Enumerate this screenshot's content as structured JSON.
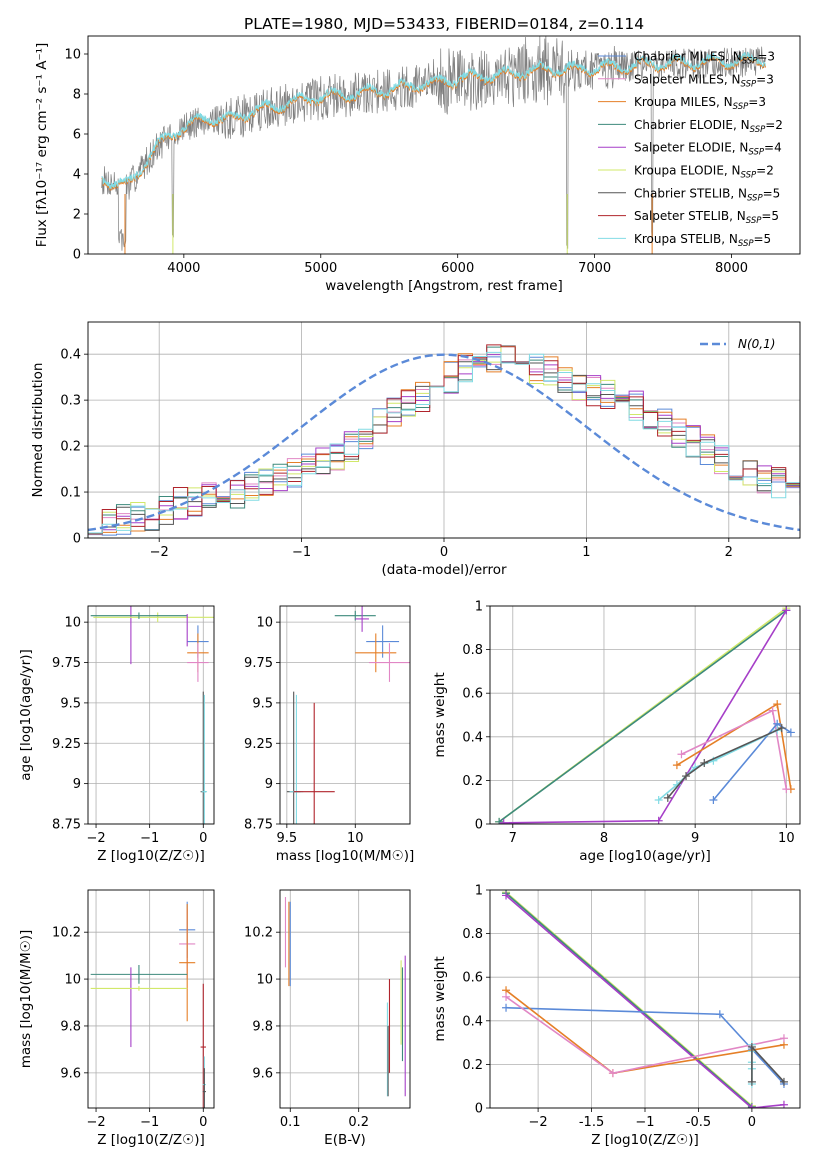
{
  "colors": {
    "Chabrier MILES": "#5b8ad8",
    "Salpeter MILES": "#e187c5",
    "Kroupa MILES": "#e57f27",
    "Chabrier ELODIE": "#3d8a7c",
    "Salpeter ELODIE": "#a63fc8",
    "Kroupa ELODIE": "#d1e86a",
    "Chabrier STELIB": "#555555",
    "Salpeter STELIB": "#b0242c",
    "Kroupa STELIB": "#82dbe4",
    "data": "#7f7f7f",
    "gaussian": "#5b8ad8",
    "grid": "#b0b0b0"
  },
  "chart_data": [
    {
      "id": "spectrum",
      "type": "line",
      "title": "PLATE=1980, MJD=53433, FIBERID=0184, z=0.114",
      "xlabel": "wavelength [Angstrom, rest frame]",
      "ylabel": "Flux [fλ10⁻¹⁷ erg cm⁻² s⁻¹ A⁻¹]",
      "xlim": [
        3300,
        8500
      ],
      "ylim": [
        0,
        10.9
      ],
      "xticks": [
        4000,
        5000,
        6000,
        7000,
        8000
      ],
      "yticks": [
        0,
        2,
        4,
        6,
        8,
        10
      ],
      "grid": false,
      "legend_position": "top-right",
      "legend": [
        "Chabrier MILES, NSSP=3",
        "Salpeter MILES, NSSP=3",
        "Kroupa MILES, NSSP=3",
        "Chabrier ELODIE, NSSP=2",
        "Salpeter ELODIE, NSSP=4",
        "Kroupa ELODIE, NSSP=2",
        "Chabrier STELIB, NSSP=5",
        "Salpeter STELIB, NSSP=5",
        "Kroupa STELIB, NSSP=5"
      ],
      "continuum_x": [
        3400,
        3500,
        3600,
        3700,
        3800,
        3900,
        4000,
        4100,
        4200,
        4300,
        4500,
        4700,
        4900,
        5100,
        5300,
        5500,
        5700,
        5900,
        6100,
        6300,
        6500,
        6700,
        6900,
        7100,
        7300,
        7500,
        7700,
        7900,
        8100,
        8250
      ],
      "continuum_y": [
        3.7,
        3.5,
        3.4,
        4.4,
        5.3,
        5.9,
        6.3,
        6.6,
        6.8,
        6.6,
        7.1,
        7.4,
        7.7,
        7.9,
        8.0,
        8.2,
        8.4,
        8.6,
        8.8,
        8.9,
        9.1,
        9.2,
        9.2,
        9.3,
        9.4,
        9.5,
        9.5,
        9.6,
        9.6,
        9.7
      ]
    },
    {
      "id": "residuals",
      "type": "histogram",
      "xlabel": "(data-model)/error",
      "ylabel": "Normed distribution",
      "xlim": [
        -2.5,
        2.5
      ],
      "ylim": [
        0,
        0.47
      ],
      "xticks": [
        -2,
        -1,
        0,
        1,
        2
      ],
      "yticks": [
        0.0,
        0.1,
        0.2,
        0.3,
        0.4
      ],
      "grid": true,
      "legend_position": "top-right",
      "legend": [
        "N(0,1)"
      ],
      "bin_width": 0.1,
      "bin_start": -2.5,
      "base_values": [
        0.025,
        0.035,
        0.04,
        0.045,
        0.05,
        0.06,
        0.075,
        0.08,
        0.09,
        0.1,
        0.1,
        0.11,
        0.12,
        0.13,
        0.14,
        0.15,
        0.17,
        0.18,
        0.2,
        0.22,
        0.25,
        0.27,
        0.29,
        0.31,
        0.32,
        0.35,
        0.37,
        0.38,
        0.39,
        0.4,
        0.38,
        0.37,
        0.36,
        0.35,
        0.33,
        0.32,
        0.31,
        0.3,
        0.29,
        0.27,
        0.25,
        0.23,
        0.21,
        0.19,
        0.17,
        0.16,
        0.14,
        0.13,
        0.12,
        0.11,
        0.1
      ]
    },
    {
      "id": "age_vs_Z",
      "type": "errorbar",
      "xlabel": "Z [log10(Z/Z☉)]",
      "ylabel": "age [log10(age/yr)]",
      "xlim": [
        -2.15,
        0.2
      ],
      "ylim": [
        8.75,
        10.1
      ],
      "xticks": [
        -2,
        -1,
        0
      ],
      "yticks": [
        8.75,
        9.0,
        9.25,
        9.5,
        9.75,
        10.0
      ],
      "grid": true,
      "points": [
        {
          "model": "Chabrier MILES",
          "x": -0.1,
          "y": 9.88,
          "xerr": 0.2,
          "yerr": 0.1
        },
        {
          "model": "Kroupa MILES",
          "x": -0.1,
          "y": 9.81,
          "xerr": 0.2,
          "yerr": 0.12
        },
        {
          "model": "Salpeter MILES",
          "x": -0.1,
          "y": 9.75,
          "xerr": 0.2,
          "yerr": 0.12
        },
        {
          "model": "Salpeter ELODIE",
          "x": -1.35,
          "y": 9.93,
          "xerr": 0.0,
          "yerr": 0.19
        },
        {
          "model": "Kroupa ELODIE",
          "x": -0.85,
          "y": 10.03,
          "xerr": 1.2,
          "yerr": 0.03
        },
        {
          "model": "Chabrier ELODIE",
          "x": -1.2,
          "y": 10.04,
          "xerr": 0.9,
          "yerr": 0.02
        },
        {
          "model": "Salpeter ELODIE",
          "x": -0.3,
          "y": 9.95,
          "xerr": 0.0,
          "yerr": 0.1
        },
        {
          "model": "Chabrier STELIB",
          "x": 0.0,
          "y": 8.95,
          "xerr": 0.05,
          "yerr": 0.62
        },
        {
          "model": "Kroupa STELIB",
          "x": 0.02,
          "y": 8.95,
          "xerr": 0.05,
          "yerr": 0.6
        }
      ]
    },
    {
      "id": "age_vs_mass",
      "type": "errorbar",
      "xlabel": "mass [log10(M/M☉)]",
      "ylabel": "",
      "xlim": [
        9.45,
        10.4
      ],
      "ylim": [
        8.75,
        10.1
      ],
      "xticks": [
        9.5,
        10.0
      ],
      "yticks": [
        8.75,
        9.0,
        9.25,
        9.5,
        9.75,
        10.0
      ],
      "grid": true,
      "points": [
        {
          "model": "Chabrier MILES",
          "x": 10.2,
          "y": 9.88,
          "xerr": 0.12,
          "yerr": 0.1
        },
        {
          "model": "Kroupa MILES",
          "x": 10.15,
          "y": 9.81,
          "xerr": 0.15,
          "yerr": 0.12
        },
        {
          "model": "Salpeter MILES",
          "x": 10.25,
          "y": 9.75,
          "xerr": 0.15,
          "yerr": 0.12
        },
        {
          "model": "Chabrier ELODIE",
          "x": 10.0,
          "y": 10.04,
          "xerr": 0.15,
          "yerr": 0.03
        },
        {
          "model": "Salpeter ELODIE",
          "x": 10.05,
          "y": 10.02,
          "xerr": 0.05,
          "yerr": 0.08
        },
        {
          "model": "Chabrier STELIB",
          "x": 9.55,
          "y": 8.95,
          "xerr": 0.05,
          "yerr": 0.62
        },
        {
          "model": "Kroupa STELIB",
          "x": 9.57,
          "y": 8.95,
          "xerr": 0.05,
          "yerr": 0.6
        },
        {
          "model": "Salpeter STELIB",
          "x": 9.7,
          "y": 8.95,
          "xerr": 0.15,
          "yerr": 0.55
        }
      ]
    },
    {
      "id": "weight_vs_age",
      "type": "line",
      "xlabel": "age [log10(age/yr)]",
      "ylabel": "mass weight",
      "xlim": [
        6.75,
        10.15
      ],
      "ylim": [
        0,
        1.0
      ],
      "xticks": [
        7,
        8,
        9,
        10
      ],
      "yticks": [
        0.0,
        0.2,
        0.4,
        0.6,
        0.8,
        1.0
      ],
      "grid": true,
      "series": [
        {
          "model": "Kroupa ELODIE",
          "x": [
            6.85,
            10.0
          ],
          "y": [
            0.01,
            0.99
          ]
        },
        {
          "model": "Chabrier ELODIE",
          "x": [
            6.85,
            10.0
          ],
          "y": [
            0.01,
            0.98
          ]
        },
        {
          "model": "Salpeter ELODIE",
          "x": [
            6.9,
            8.6,
            10.0
          ],
          "y": [
            0.005,
            0.015,
            0.98
          ]
        },
        {
          "model": "Kroupa MILES",
          "x": [
            8.8,
            9.9,
            10.05
          ],
          "y": [
            0.27,
            0.55,
            0.16
          ]
        },
        {
          "model": "Salpeter MILES",
          "x": [
            8.85,
            9.85,
            10.0
          ],
          "y": [
            0.32,
            0.52,
            0.16
          ]
        },
        {
          "model": "Chabrier MILES",
          "x": [
            9.2,
            9.9,
            10.05
          ],
          "y": [
            0.11,
            0.46,
            0.42
          ]
        },
        {
          "model": "Kroupa STELIB",
          "x": [
            8.6,
            8.8,
            9.0,
            9.2,
            9.9
          ],
          "y": [
            0.11,
            0.18,
            0.26,
            0.29,
            0.43
          ]
        },
        {
          "model": "Chabrier STELIB",
          "x": [
            8.7,
            8.9,
            9.1,
            9.95
          ],
          "y": [
            0.12,
            0.22,
            0.28,
            0.44
          ]
        }
      ]
    },
    {
      "id": "mass_vs_Z",
      "type": "errorbar",
      "xlabel": "Z [log10(Z/Z☉)]",
      "ylabel": "mass [log10(M/M☉)]",
      "xlim": [
        -2.15,
        0.2
      ],
      "ylim": [
        9.45,
        10.38
      ],
      "xticks": [
        -2,
        -1,
        0
      ],
      "yticks": [
        9.6,
        9.8,
        10.0,
        10.2
      ],
      "grid": true,
      "points": [
        {
          "model": "Chabrier MILES",
          "x": -0.3,
          "y": 10.21,
          "xerr": 0.15,
          "yerr": 0.12
        },
        {
          "model": "Salpeter MILES",
          "x": -0.3,
          "y": 10.15,
          "xerr": 0.15,
          "yerr": 0.15
        },
        {
          "model": "Kroupa MILES",
          "x": -0.3,
          "y": 10.07,
          "xerr": 0.15,
          "yerr": 0.25
        },
        {
          "model": "Chabrier ELODIE",
          "x": -1.2,
          "y": 10.02,
          "xerr": 0.9,
          "yerr": 0.04
        },
        {
          "model": "Salpeter ELODIE",
          "x": -1.35,
          "y": 9.88,
          "xerr": 0.0,
          "yerr": 0.17
        },
        {
          "model": "Kroupa ELODIE",
          "x": -1.2,
          "y": 9.96,
          "xerr": 0.9,
          "yerr": 0.01
        },
        {
          "model": "Salpeter STELIB",
          "x": 0.0,
          "y": 9.71,
          "xerr": 0.05,
          "yerr": 0.27
        },
        {
          "model": "Kroupa STELIB",
          "x": 0.02,
          "y": 9.55,
          "xerr": 0.03,
          "yerr": 0.12
        },
        {
          "model": "Chabrier STELIB",
          "x": 0.02,
          "y": 9.52,
          "xerr": 0.03,
          "yerr": 0.1
        }
      ]
    },
    {
      "id": "mass_vs_EBV",
      "type": "errorbar",
      "xlabel": "E(B-V)",
      "ylabel": "",
      "xlim": [
        0.085,
        0.275
      ],
      "ylim": [
        9.45,
        10.38
      ],
      "xticks": [
        0.1,
        0.2
      ],
      "yticks": [
        9.6,
        9.8,
        10.0,
        10.2
      ],
      "grid": true,
      "points": [
        {
          "model": "Salpeter MILES",
          "x": 0.093,
          "y": 10.2,
          "xerr": 0.0,
          "yerr": 0.15
        },
        {
          "model": "Kroupa MILES",
          "x": 0.098,
          "y": 10.15,
          "xerr": 0.0,
          "yerr": 0.18
        },
        {
          "model": "Chabrier MILES",
          "x": 0.1,
          "y": 10.15,
          "xerr": 0.0,
          "yerr": 0.18
        },
        {
          "model": "Salpeter STELIB",
          "x": 0.245,
          "y": 9.8,
          "xerr": 0.0,
          "yerr": 0.2
        },
        {
          "model": "Kroupa STELIB",
          "x": 0.242,
          "y": 9.7,
          "xerr": 0.0,
          "yerr": 0.2
        },
        {
          "model": "Chabrier STELIB",
          "x": 0.243,
          "y": 9.65,
          "xerr": 0.0,
          "yerr": 0.15
        },
        {
          "model": "Kroupa ELODIE",
          "x": 0.262,
          "y": 9.9,
          "xerr": 0.0,
          "yerr": 0.18
        },
        {
          "model": "Chabrier ELODIE",
          "x": 0.264,
          "y": 9.85,
          "xerr": 0.0,
          "yerr": 0.2
        },
        {
          "model": "Salpeter ELODIE",
          "x": 0.268,
          "y": 9.8,
          "xerr": 0.0,
          "yerr": 0.3
        }
      ]
    },
    {
      "id": "weight_vs_Z",
      "type": "line",
      "xlabel": "Z [log10(Z/Z☉)]",
      "ylabel": "mass weight",
      "xlim": [
        -2.45,
        0.45
      ],
      "ylim": [
        0,
        1.0
      ],
      "xticks": [
        -2.0,
        -1.5,
        -1.0,
        -0.5,
        0.0
      ],
      "yticks": [
        0.0,
        0.2,
        0.4,
        0.6,
        0.8,
        1.0
      ],
      "grid": true,
      "series": [
        {
          "model": "Kroupa ELODIE",
          "x": [
            -2.3,
            0.0
          ],
          "y": [
            0.99,
            0.01
          ]
        },
        {
          "model": "Chabrier ELODIE",
          "x": [
            -2.3,
            0.0
          ],
          "y": [
            0.985,
            0.005
          ]
        },
        {
          "model": "Salpeter ELODIE",
          "x": [
            -2.3,
            0.0,
            0.3
          ],
          "y": [
            0.975,
            0.0,
            0.015
          ]
        },
        {
          "model": "Chabrier MILES",
          "x": [
            -2.3,
            -0.3,
            0.0,
            0.3
          ],
          "y": [
            0.46,
            0.43,
            0.27,
            0.11
          ]
        },
        {
          "model": "Kroupa MILES",
          "x": [
            -2.3,
            -1.3,
            0.3
          ],
          "y": [
            0.54,
            0.16,
            0.29
          ]
        },
        {
          "model": "Salpeter MILES",
          "x": [
            -2.3,
            -1.3,
            0.3
          ],
          "y": [
            0.51,
            0.16,
            0.32
          ]
        },
        {
          "model": "Kroupa STELIB",
          "x": [
            0.0,
            0.0,
            0.0,
            0.0,
            0.0
          ],
          "y": [
            0.11,
            0.18,
            0.21,
            0.26,
            0.29
          ]
        },
        {
          "model": "Chabrier STELIB",
          "x": [
            0.0,
            0.0,
            0.3
          ],
          "y": [
            0.12,
            0.28,
            0.12
          ]
        }
      ]
    }
  ]
}
